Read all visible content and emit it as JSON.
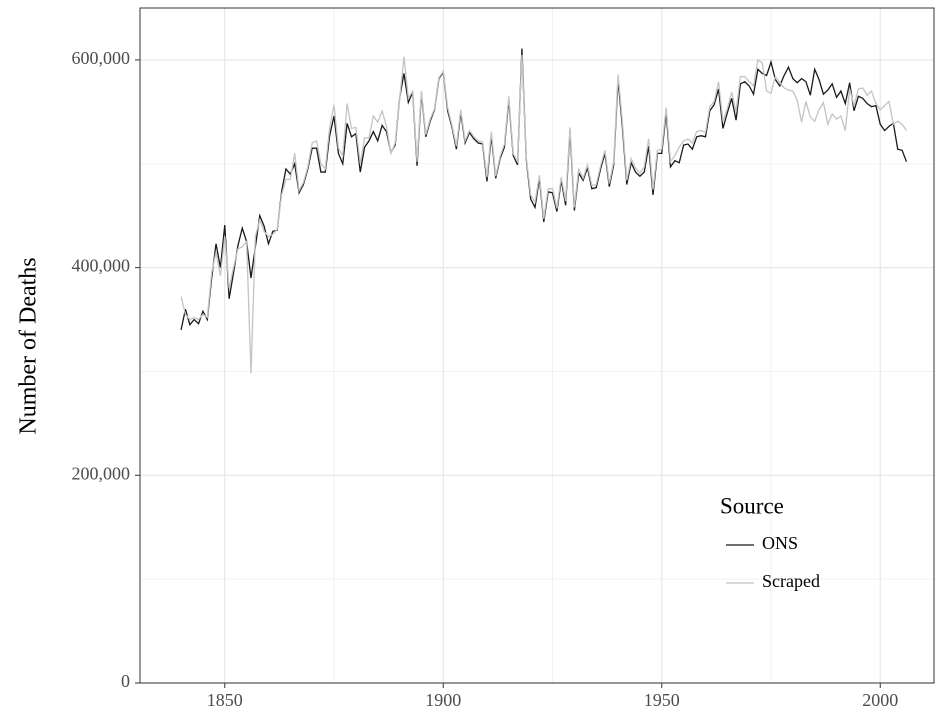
{
  "chart_data": {
    "type": "line",
    "y_label": "Number of Deaths",
    "legend_title": "Source",
    "legend_position": "bottom-right",
    "grid": true,
    "xlim": [
      1830.6,
      2012.3
    ],
    "ylim": [
      0,
      650000
    ],
    "xticks": [
      1850,
      1900,
      1950,
      2000
    ],
    "yticks": [
      0,
      {
        "value": 200000,
        "label": "200,000"
      },
      {
        "value": 400000,
        "label": "400,000"
      },
      {
        "value": 600000,
        "label": "600,000"
      }
    ],
    "xminorticks": [
      1875,
      1925,
      1975
    ],
    "yminorticks": [
      100000,
      300000,
      500000
    ],
    "x": [
      1840,
      1841,
      1842,
      1843,
      1844,
      1845,
      1846,
      1847,
      1848,
      1849,
      1850,
      1851,
      1852,
      1853,
      1854,
      1855,
      1856,
      1857,
      1858,
      1859,
      1860,
      1861,
      1862,
      1863,
      1864,
      1865,
      1866,
      1867,
      1868,
      1869,
      1870,
      1871,
      1872,
      1873,
      1874,
      1875,
      1876,
      1877,
      1878,
      1879,
      1880,
      1881,
      1882,
      1883,
      1884,
      1885,
      1886,
      1887,
      1888,
      1889,
      1890,
      1891,
      1892,
      1893,
      1894,
      1895,
      1896,
      1897,
      1898,
      1899,
      1900,
      1901,
      1902,
      1903,
      1904,
      1905,
      1906,
      1907,
      1908,
      1909,
      1910,
      1911,
      1912,
      1913,
      1914,
      1915,
      1916,
      1917,
      1918,
      1919,
      1920,
      1921,
      1922,
      1923,
      1924,
      1925,
      1926,
      1927,
      1928,
      1929,
      1930,
      1931,
      1932,
      1933,
      1934,
      1935,
      1936,
      1937,
      1938,
      1939,
      1940,
      1941,
      1942,
      1943,
      1944,
      1945,
      1946,
      1947,
      1948,
      1949,
      1950,
      1951,
      1952,
      1953,
      1954,
      1955,
      1956,
      1957,
      1958,
      1959,
      1960,
      1961,
      1962,
      1963,
      1964,
      1965,
      1966,
      1967,
      1968,
      1969,
      1970,
      1971,
      1972,
      1973,
      1974,
      1975,
      1976,
      1977,
      1978,
      1979,
      1980,
      1981,
      1982,
      1983,
      1984,
      1985,
      1986,
      1987,
      1988,
      1989,
      1990,
      1991,
      1992,
      1993,
      1994,
      1995,
      1996,
      1997,
      1998,
      1999,
      2000,
      2001,
      2002,
      2003,
      2004,
      2005,
      2006
    ],
    "series": [
      {
        "name": "ONS",
        "color": "#1a1a1a",
        "values": [
          340000,
          360000,
          345000,
          350000,
          346000,
          358000,
          350000,
          390000,
          423000,
          400000,
          441000,
          370000,
          395000,
          421000,
          438000,
          425000,
          390000,
          420000,
          450000,
          440000,
          423000,
          435000,
          436000,
          473000,
          495000,
          490000,
          500000,
          472000,
          480000,
          495000,
          515000,
          515000,
          492000,
          492000,
          527000,
          546000,
          510000,
          500000,
          539000,
          526000,
          529000,
          492000,
          516000,
          522000,
          531000,
          522000,
          537000,
          531000,
          511000,
          518000,
          563000,
          587000,
          559000,
          569000,
          498000,
          568000,
          526000,
          541000,
          552000,
          582000,
          588000,
          551000,
          535000,
          514000,
          549000,
          520000,
          530000,
          524000,
          520000,
          519000,
          483000,
          527000,
          486000,
          505000,
          516000,
          562000,
          508000,
          499000,
          611000,
          504000,
          466000,
          458000,
          486000,
          444000,
          473000,
          472000,
          454000,
          484000,
          460000,
          532000,
          455000,
          491000,
          484000,
          496000,
          476000,
          477000,
          495000,
          510000,
          478000,
          499000,
          581000,
          535000,
          480000,
          501000,
          492000,
          488000,
          492000,
          517000,
          470000,
          510000,
          510000,
          549000,
          497000,
          503000,
          501000,
          518000,
          519000,
          514000,
          526000,
          527000,
          526000,
          551000,
          557000,
          572000,
          534000,
          549000,
          563000,
          542000,
          577000,
          579000,
          575000,
          567000,
          591000,
          587000,
          585000,
          598000,
          581000,
          575000,
          585000,
          593000,
          582000,
          578000,
          582000,
          579000,
          566000,
          591000,
          581000,
          567000,
          571000,
          577000,
          564000,
          570000,
          558000,
          578000,
          551000,
          565000,
          563000,
          558000,
          555000,
          556000,
          538000,
          532000,
          536000,
          539000,
          514000,
          513000,
          502000
        ]
      },
      {
        "name": "Scraped",
        "color": "#c4c4c4",
        "values": [
          372000,
          355000,
          350000,
          352000,
          350000,
          355000,
          352000,
          395000,
          415000,
          392000,
          430000,
          380000,
          400000,
          418000,
          420000,
          425000,
          298000,
          430000,
          446000,
          435000,
          430000,
          432000,
          437000,
          470000,
          485000,
          485000,
          510000,
          474000,
          482000,
          497000,
          520000,
          522000,
          500000,
          495000,
          535000,
          557000,
          515000,
          508000,
          558000,
          534000,
          535000,
          500000,
          525000,
          525000,
          546000,
          540000,
          551000,
          536000,
          510000,
          520000,
          562000,
          603000,
          563000,
          570000,
          502000,
          570000,
          528000,
          543000,
          553000,
          583000,
          589000,
          554000,
          537000,
          517000,
          552000,
          522000,
          532000,
          526000,
          522000,
          521000,
          487000,
          531000,
          488000,
          507000,
          519000,
          565000,
          510000,
          502000,
          605000,
          506000,
          470000,
          463000,
          489000,
          447000,
          476000,
          476000,
          457000,
          487000,
          464000,
          535000,
          458000,
          495000,
          486000,
          499000,
          479000,
          480000,
          498000,
          513000,
          481000,
          502000,
          586000,
          540000,
          484000,
          505000,
          496000,
          491000,
          497000,
          524000,
          475000,
          513000,
          514000,
          554000,
          502000,
          508000,
          516000,
          522000,
          524000,
          520000,
          531000,
          532000,
          530000,
          555000,
          560000,
          579000,
          541000,
          553000,
          569000,
          550000,
          584000,
          584000,
          579000,
          575000,
          600000,
          597000,
          570000,
          568000,
          584000,
          578000,
          573000,
          571000,
          570000,
          561000,
          540000,
          560000,
          545000,
          541000,
          552000,
          559000,
          538000,
          548000,
          543000,
          546000,
          532000,
          572000,
          556000,
          572000,
          573000,
          566000,
          570000,
          558000,
          552000,
          556000,
          560000,
          538000,
          541000,
          538000,
          532000
        ]
      }
    ]
  }
}
